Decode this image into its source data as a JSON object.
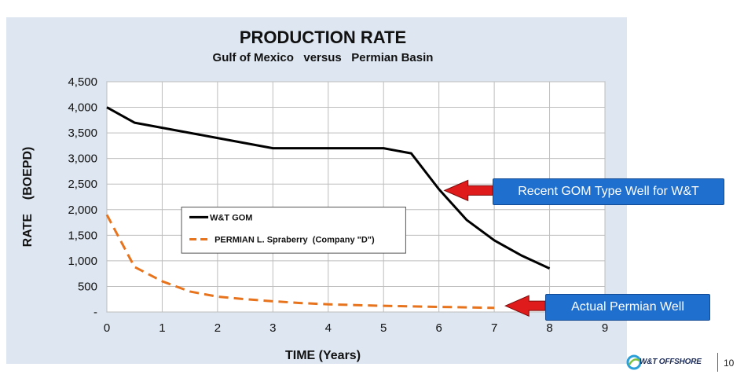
{
  "chart_data": {
    "type": "line",
    "title": "PRODUCTION RATE",
    "subtitle": "Gulf of Mexico   versus   Permian Basin",
    "xlabel": "TIME (Years)",
    "ylabel": "RATE    (BOEPD)",
    "xlim": [
      0,
      9
    ],
    "ylim": [
      0,
      4500
    ],
    "x_ticks": [
      "0",
      "1",
      "2",
      "3",
      "4",
      "5",
      "6",
      "7",
      "8",
      "9"
    ],
    "y_ticks": [
      "-",
      "500",
      "1,000",
      "1,500",
      "2,000",
      "2,500",
      "3,000",
      "3,500",
      "4,000",
      "4,500"
    ],
    "grid": true,
    "legend_position": "center-left",
    "series": [
      {
        "name": "W&T GOM",
        "color": "#000000",
        "style": "solid",
        "x": [
          0,
          0.5,
          1,
          1.5,
          2,
          2.5,
          3,
          3.5,
          4,
          4.5,
          5,
          5.5,
          6,
          6.5,
          7,
          7.5,
          8
        ],
        "values": [
          4000,
          3700,
          3600,
          3500,
          3400,
          3300,
          3200,
          3200,
          3200,
          3200,
          3200,
          3100,
          2400,
          1800,
          1400,
          1100,
          850
        ]
      },
      {
        "name": "PERMIAN L. Spraberry  (Company \"D\")",
        "color": "#e8731d",
        "style": "dashed",
        "x": [
          0,
          0.5,
          1,
          1.5,
          2,
          2.5,
          3,
          3.5,
          4,
          4.5,
          5,
          5.5,
          6,
          6.5,
          7
        ],
        "values": [
          1900,
          880,
          600,
          400,
          300,
          250,
          210,
          175,
          150,
          135,
          120,
          110,
          100,
          90,
          80
        ]
      }
    ]
  },
  "callouts": {
    "gom": "Recent GOM Type Well for W&T",
    "permian": "Actual Permian Well"
  },
  "footer": {
    "logo_text": "W&T OFFSHORE",
    "page_number": "10"
  }
}
